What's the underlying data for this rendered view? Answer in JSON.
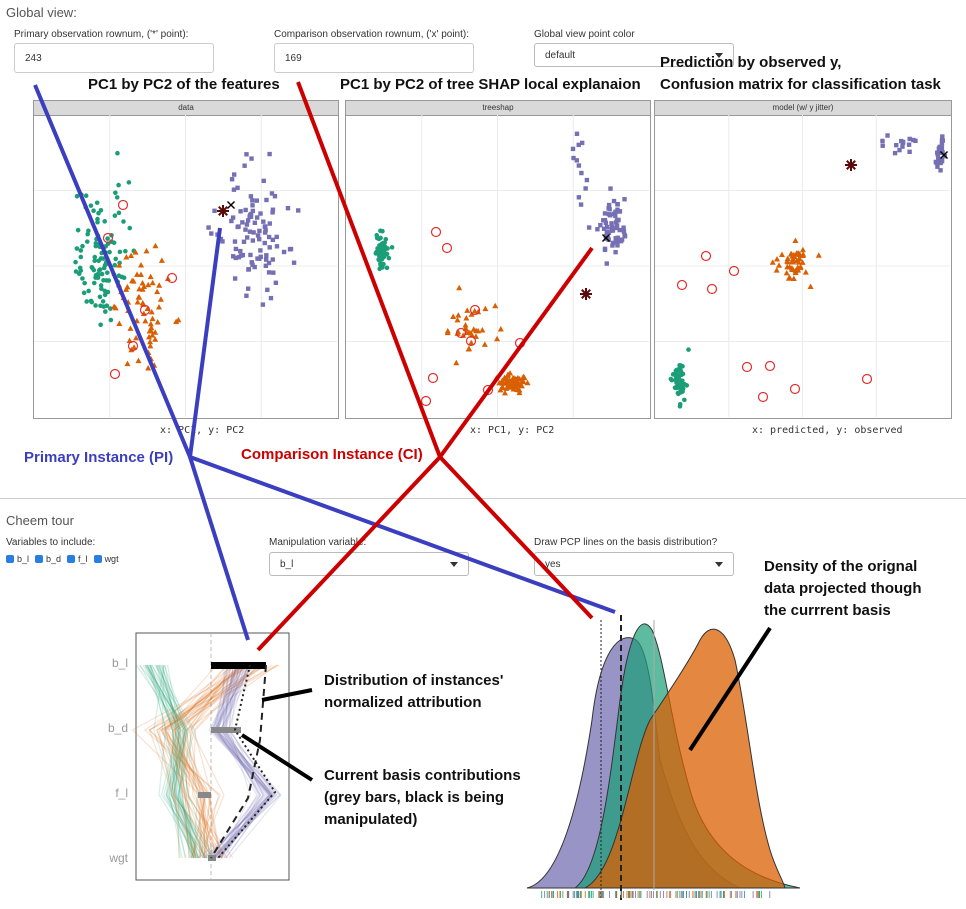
{
  "global": {
    "section_title": "Global view:",
    "primary_label": "Primary observation rownum, ('*' point):",
    "primary_value": "243",
    "comparison_label": "Comparison observation rownum, ('x' point):",
    "comparison_value": "169",
    "color_label": "Global view point color",
    "color_value": "default",
    "panels": [
      {
        "strip": "data",
        "axis": "x: PC1, y: PC2"
      },
      {
        "strip": "treeshap",
        "axis": "x: PC1, y: PC2"
      },
      {
        "strip": "model (w/ y jitter)",
        "axis": "x: predicted, y: observed"
      }
    ]
  },
  "annotations": {
    "pc_features": "PC1 by PC2 of the features",
    "pc_shap": "PC1 by PC2 of tree SHAP local explanaion",
    "prediction_1": "Prediction by observed y,",
    "prediction_2": "Confusion matrix for classification task",
    "primary_instance": "Primary Instance (PI)",
    "comparison_instance": "Comparison Instance (CI)",
    "density_1": "Density of the orignal",
    "density_2": "data projected though",
    "density_3": "the currrent basis",
    "distribution_1": "Distribution of instances'",
    "distribution_2": "normalized attribution",
    "basis_1": "Current basis contributions",
    "basis_2": "(grey bars, black is being",
    "basis_3": "manipulated)"
  },
  "tour": {
    "section_title": "Cheem tour",
    "vars_label": "Variables to include:",
    "variables": [
      "b_l",
      "b_d",
      "f_l",
      "wgt"
    ],
    "manip_label": "Manipulation variable:",
    "manip_value": "b_l",
    "pcp_label": "Draw PCP lines on the basis distribution?",
    "pcp_value": "yes",
    "pcp_axis_labels": [
      "b_l",
      "b_d",
      "f_l",
      "wgt"
    ]
  },
  "colors": {
    "green": "#1b9e77",
    "orange": "#d95f02",
    "purple": "#7570b3",
    "pi_line": "#3b3fbf",
    "ci_line": "#cc0000",
    "checkbox": "#2a7de1"
  }
}
